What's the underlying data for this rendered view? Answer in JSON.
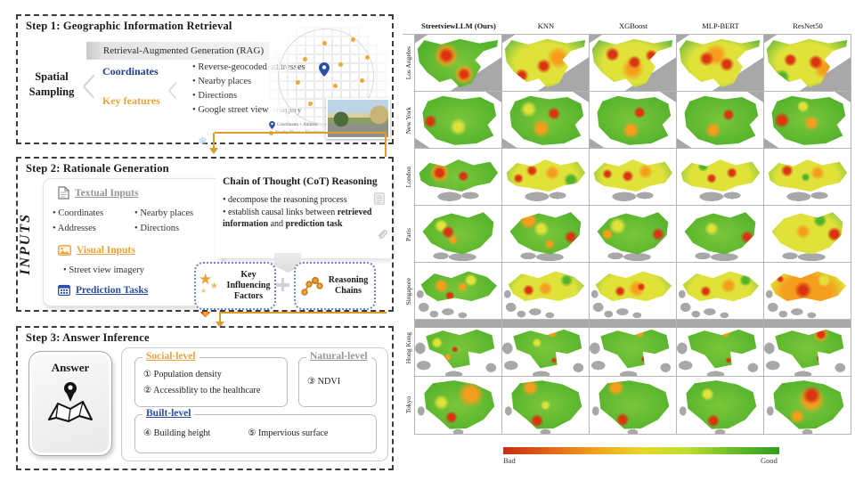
{
  "step1": {
    "title": "Step 1:  Geographic Information Retrieval",
    "rag": "Retrieval-Augmented Generation (RAG)",
    "spatial_sampling": "Spatial Sampling",
    "coordinates": "Coordinates",
    "key_features": "Key features",
    "bullets": [
      "Reverse-geocoded addresses",
      "Nearby places",
      "Directions",
      "Google street view imagery"
    ],
    "legend": [
      {
        "label": "Coordinates + Address"
      },
      {
        "label": "Nearby Places + Directions"
      }
    ]
  },
  "step2": {
    "title": "Step 2:  Rationale Generation",
    "inputs_label": "INPUTS",
    "textual_title": "Textual Inputs",
    "textual_items": [
      "Coordinates",
      "Nearby places",
      "Addresses",
      "Directions"
    ],
    "visual_title": "Visual Inputs",
    "visual_items": [
      "Street view imagery"
    ],
    "prediction_title": "Prediction Tasks",
    "cot_title": "Chain of Thought (CoT) Reasoning",
    "cot_bullet1": "decompose the reasoning process",
    "cot_bullet2_pre": "establish causal links between ",
    "cot_bullet2_bold1": "retrieved information",
    "cot_bullet2_mid": " and ",
    "cot_bullet2_bold2": "prediction task",
    "factors_label": "Key Influencing Factors",
    "chains_label": "Reasoning Chains"
  },
  "step3": {
    "title": "Step 3:  Answer Inference",
    "answer_label": "Answer",
    "social_title": "Social-level",
    "social_items": [
      "① Population density",
      "② Accessiblity to the healthcare"
    ],
    "natural_title": "Natural-level",
    "natural_items": [
      "③ NDVI"
    ],
    "built_title": "Built-level",
    "built_items": [
      "④ Building height",
      "⑤ Impervious surface"
    ]
  },
  "icons": {
    "snowflake": "❄",
    "star": "★"
  },
  "heatmap": {
    "methods": [
      "StreetviewLLM (Ours)",
      "KNN",
      "XGBoost",
      "MLP-BERT",
      "ResNet50"
    ],
    "cities": [
      "Los Angeles",
      "New York",
      "London",
      "Paris",
      "Singapore",
      "Hong Kong",
      "Tokyo"
    ],
    "colorbar": {
      "left": "Bad",
      "right": "Good"
    },
    "colors": {
      "green": "#54b32c",
      "yellow": "#e0e23a",
      "orange": "#f59e1d",
      "red": "#da3412",
      "land": "#a8a8a8"
    },
    "cells": [
      [
        {
          "base": "green",
          "spots": [
            [
              "red",
              36,
              36,
              13
            ],
            [
              "orange",
              36,
              36,
              20
            ],
            [
              "red",
              57,
              70,
              11
            ],
            [
              "orange",
              57,
              70,
              17
            ]
          ]
        },
        {
          "base": "yellow",
          "spots": [
            [
              "red",
              48,
              55,
              14
            ],
            [
              "red",
              22,
              72,
              9
            ],
            [
              "orange",
              65,
              40,
              18
            ],
            [
              "green",
              85,
              75,
              14
            ]
          ]
        },
        {
          "base": "yellow",
          "spots": [
            [
              "red",
              52,
              48,
              13
            ],
            [
              "red",
              26,
              34,
              10
            ],
            [
              "red",
              72,
              36,
              9
            ],
            [
              "orange",
              50,
              60,
              22
            ]
          ]
        },
        {
          "base": "yellow",
          "spots": [
            [
              "red",
              34,
              42,
              12
            ],
            [
              "red",
              58,
              52,
              13
            ],
            [
              "orange",
              45,
              35,
              20
            ],
            [
              "green",
              85,
              80,
              12
            ]
          ]
        },
        {
          "base": "yellow",
          "spots": [
            [
              "red",
              60,
              48,
              13
            ],
            [
              "red",
              30,
              44,
              10
            ],
            [
              "orange",
              70,
              60,
              16
            ],
            [
              "green",
              20,
              75,
              10
            ]
          ]
        }
      ],
      [
        {
          "base": "green",
          "spots": [
            [
              "red",
              17,
              52,
              9
            ],
            [
              "yellow",
              50,
              62,
              16
            ]
          ]
        },
        {
          "base": "green",
          "spots": [
            [
              "red",
              60,
              38,
              11
            ],
            [
              "orange",
              45,
              65,
              16
            ],
            [
              "yellow",
              30,
              30,
              12
            ]
          ]
        },
        {
          "base": "green",
          "spots": [
            [
              "red",
              58,
              36,
              10
            ],
            [
              "orange",
              48,
              68,
              15
            ]
          ]
        },
        {
          "base": "green",
          "spots": [
            [
              "red",
              60,
              40,
              10
            ],
            [
              "orange",
              42,
              68,
              13
            ]
          ]
        },
        {
          "base": "green",
          "spots": [
            [
              "red",
              20,
              50,
              11
            ],
            [
              "orange",
              55,
              55,
              14
            ],
            [
              "yellow",
              45,
              25,
              10
            ]
          ]
        }
      ],
      [
        {
          "base": "green",
          "spots": [
            [
              "red",
              28,
              42,
              10
            ],
            [
              "orange",
              28,
              42,
              15
            ],
            [
              "red",
              56,
              48,
              10
            ]
          ]
        },
        {
          "base": "yellow",
          "spots": [
            [
              "red",
              34,
              38,
              9
            ],
            [
              "red",
              18,
              52,
              7
            ],
            [
              "orange",
              58,
              42,
              13
            ],
            [
              "green",
              80,
              55,
              10
            ]
          ]
        },
        {
          "base": "yellow",
          "spots": [
            [
              "red",
              44,
              48,
              11
            ],
            [
              "red",
              20,
              44,
              7
            ],
            [
              "orange",
              65,
              40,
              12
            ]
          ]
        },
        {
          "base": "yellow",
          "spots": [
            [
              "red",
              40,
              52,
              9
            ],
            [
              "red",
              64,
              42,
              9
            ],
            [
              "green",
              30,
              30,
              8
            ]
          ]
        },
        {
          "base": "yellow",
          "spots": [
            [
              "red",
              26,
              38,
              9
            ],
            [
              "orange",
              62,
              42,
              12
            ],
            [
              "green",
              48,
              50,
              9
            ]
          ]
        }
      ],
      [
        {
          "base": "green",
          "spots": [
            [
              "red",
              38,
              46,
              11
            ],
            [
              "orange",
              44,
              60,
              9
            ],
            [
              "yellow",
              30,
              35,
              10
            ]
          ]
        },
        {
          "base": "green",
          "spots": [
            [
              "orange",
              30,
              25,
              13
            ],
            [
              "red",
              80,
              55,
              9
            ],
            [
              "orange",
              55,
              68,
              9
            ],
            [
              "yellow",
              45,
              40,
              14
            ]
          ]
        },
        {
          "base": "green",
          "spots": [
            [
              "red",
              80,
              50,
              9
            ],
            [
              "yellow",
              32,
              35,
              13
            ],
            [
              "orange",
              20,
              50,
              8
            ]
          ]
        },
        {
          "base": "green",
          "spots": [
            [
              "red",
              82,
              55,
              9
            ],
            [
              "yellow",
              40,
              40,
              12
            ]
          ]
        },
        {
          "base": "yellow",
          "spots": [
            [
              "orange",
              45,
              45,
              14
            ],
            [
              "red",
              82,
              50,
              10
            ],
            [
              "green",
              65,
              25,
              10
            ]
          ]
        }
      ],
      [
        {
          "base": "green",
          "spots": [
            [
              "red",
              40,
              58,
              8
            ],
            [
              "orange",
              30,
              40,
              11
            ],
            [
              "orange",
              55,
              42,
              9
            ],
            [
              "yellow",
              65,
              30,
              10
            ]
          ]
        },
        {
          "base": "yellow",
          "spots": [
            [
              "red",
              30,
              48,
              9
            ],
            [
              "orange",
              50,
              45,
              14
            ],
            [
              "green",
              75,
              30,
              9
            ]
          ]
        },
        {
          "base": "yellow",
          "spots": [
            [
              "red",
              35,
              50,
              9
            ],
            [
              "red",
              60,
              42,
              7
            ],
            [
              "orange",
              55,
              45,
              16
            ]
          ]
        },
        {
          "base": "yellow",
          "spots": [
            [
              "red",
              33,
              50,
              9
            ],
            [
              "orange",
              60,
              40,
              13
            ],
            [
              "green",
              80,
              30,
              8
            ]
          ]
        },
        {
          "base": "orange",
          "spots": [
            [
              "red",
              45,
              48,
              16
            ],
            [
              "red",
              18,
              28,
              5
            ],
            [
              "yellow",
              70,
              30,
              10
            ]
          ]
        }
      ],
      [
        {
          "base": "green",
          "spots": [
            [
              "red",
              46,
              52,
              6
            ],
            [
              "orange",
              38,
              66,
              6
            ],
            [
              "yellow",
              25,
              40,
              8
            ]
          ]
        },
        {
          "base": "green",
          "spots": [
            [
              "orange",
              58,
              22,
              8
            ],
            [
              "red",
              60,
              72,
              5
            ],
            [
              "yellow",
              40,
              40,
              8
            ]
          ]
        },
        {
          "base": "green",
          "spots": [
            [
              "orange",
              58,
              22,
              8
            ],
            [
              "red",
              63,
              70,
              5
            ]
          ]
        },
        {
          "base": "green",
          "spots": [
            [
              "orange",
              56,
              22,
              8
            ],
            [
              "red",
              60,
              72,
              5
            ]
          ]
        },
        {
          "base": "green",
          "spots": [
            [
              "red",
              66,
              25,
              8
            ],
            [
              "orange",
              66,
              25,
              12
            ],
            [
              "red",
              64,
              68,
              5
            ]
          ]
        }
      ],
      [
        {
          "base": "green",
          "spots": [
            [
              "orange",
              65,
              30,
              20
            ],
            [
              "red",
              42,
              72,
              10
            ],
            [
              "yellow",
              30,
              45,
              12
            ]
          ]
        },
        {
          "base": "green",
          "spots": [
            [
              "orange",
              32,
              18,
              12
            ],
            [
              "red",
              40,
              78,
              10
            ],
            [
              "yellow",
              50,
              50,
              10
            ]
          ]
        },
        {
          "base": "green",
          "spots": [
            [
              "orange",
              30,
              18,
              12
            ],
            [
              "red",
              38,
              76,
              10
            ]
          ]
        },
        {
          "base": "green",
          "spots": [
            [
              "red",
              42,
              78,
              10
            ],
            [
              "yellow",
              35,
              30,
              10
            ]
          ]
        },
        {
          "base": "green",
          "spots": [
            [
              "red",
              55,
              32,
              16
            ],
            [
              "orange",
              55,
              40,
              24
            ],
            [
              "orange",
              38,
              70,
              12
            ]
          ]
        }
      ]
    ]
  }
}
